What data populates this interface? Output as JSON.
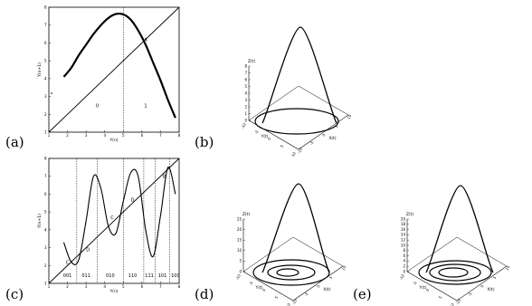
{
  "figure": {
    "panels": [
      {
        "id": "a",
        "label": "(a)"
      },
      {
        "id": "b",
        "label": "(b)"
      },
      {
        "id": "c",
        "label": "(c)"
      },
      {
        "id": "d",
        "label": "(d)"
      },
      {
        "id": "e",
        "label": "(e)"
      }
    ]
  },
  "chart_data": [
    {
      "type": "line",
      "panel": "a",
      "xlabel": "Y(n)",
      "ylabel": "Y(n+1)",
      "xlim": [
        1,
        8
      ],
      "ylim": [
        1,
        8
      ],
      "xticks": [
        "1",
        "2",
        "3",
        "4",
        "5",
        "6",
        "7",
        "8"
      ],
      "yticks": [
        "1",
        "2",
        "3",
        "4",
        "5",
        "6",
        "7",
        "8"
      ],
      "region_labels": [
        "0",
        "1"
      ],
      "point_labels": [
        "A"
      ],
      "vlines": [
        5
      ],
      "series": [
        {
          "x": [
            1.8,
            2.2,
            2.6,
            3.0,
            3.4,
            3.8,
            4.2,
            4.6,
            5.0,
            5.4,
            5.8,
            6.2,
            6.6,
            7.0,
            7.4,
            7.8
          ],
          "y": [
            4.1,
            4.6,
            5.3,
            5.9,
            6.5,
            7.0,
            7.4,
            7.62,
            7.6,
            7.3,
            6.7,
            5.9,
            4.9,
            3.9,
            2.8,
            1.8
          ]
        }
      ]
    },
    {
      "type": "line",
      "panel": "c",
      "xlabel": "Y(n)",
      "ylabel": "Y(n+1)",
      "xlim": [
        1,
        8
      ],
      "ylim": [
        1,
        8
      ],
      "xticks": [
        "1",
        "2",
        "3",
        "4",
        "5",
        "6",
        "7",
        "8"
      ],
      "yticks": [
        "1",
        "2",
        "3",
        "4",
        "5",
        "6",
        "7",
        "8"
      ],
      "region_labels": [
        "001",
        "011",
        "010",
        "110",
        "111",
        "101",
        "100"
      ],
      "point_labels": [
        "C",
        "D",
        "C",
        "D",
        "B"
      ],
      "vlines": [
        2.5,
        3.6,
        5.0,
        6.1,
        6.7,
        7.5
      ],
      "series": [
        {
          "x": [
            1.8,
            2.2,
            2.6,
            3.0,
            3.4,
            3.8,
            4.2,
            4.6,
            5.0,
            5.4,
            5.8,
            6.2,
            6.6,
            7.0,
            7.4,
            7.8
          ],
          "y": [
            3.3,
            2.2,
            2.3,
            4.5,
            7.0,
            6.3,
            4.2,
            3.8,
            5.6,
            7.2,
            7.0,
            4.0,
            2.5,
            4.8,
            7.5,
            6.0
          ]
        }
      ]
    }
  ],
  "attractors": [
    {
      "panel": "b",
      "zlabel": "Z(t)",
      "ylabel": "Y(t)",
      "xlabel": "X(t)",
      "zticks": [
        "0",
        "1",
        "2",
        "3",
        "4",
        "5",
        "6",
        "7",
        "8"
      ],
      "yticks": [
        "-10",
        "-5",
        "0",
        "5",
        "10"
      ],
      "xticks": [
        "-10",
        "-5",
        "0",
        "5",
        "10"
      ]
    },
    {
      "panel": "d",
      "zlabel": "Z(t)",
      "ylabel": "Y(t)",
      "xlabel": "X(t)",
      "zticks": [
        "0",
        "5",
        "10",
        "15",
        "20",
        "25"
      ],
      "yticks": [
        "-10",
        "-5",
        "0",
        "5",
        "10"
      ],
      "xticks": [
        "-10",
        "-5",
        "0",
        "5",
        "10"
      ]
    },
    {
      "panel": "e",
      "zlabel": "Z(t)",
      "ylabel": "Y(t)",
      "xlabel": "X(t)",
      "zticks": [
        "0",
        "2",
        "4",
        "6",
        "8",
        "10",
        "12",
        "14",
        "16",
        "18",
        "20"
      ],
      "yticks": [
        "-10",
        "-5",
        "0",
        "5",
        "10"
      ],
      "xticks": [
        "-10",
        "-5",
        "0",
        "5",
        "10"
      ]
    }
  ]
}
